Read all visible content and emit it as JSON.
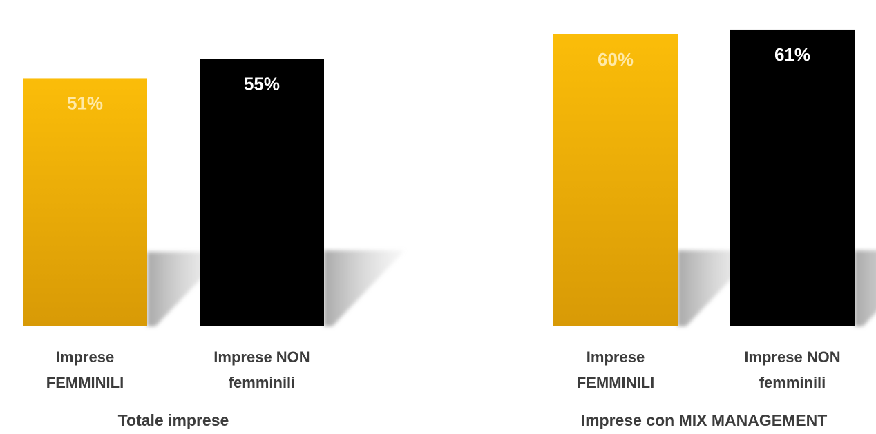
{
  "chart_data": {
    "type": "bar",
    "groups": [
      {
        "label": "Totale imprese",
        "bars": [
          {
            "category": [
              "Imprese",
              "FEMMINILI"
            ],
            "value": 51,
            "value_label": "51%",
            "series": "Imprese FEMMINILI"
          },
          {
            "category": [
              "Imprese NON",
              "femminili"
            ],
            "value": 55,
            "value_label": "55%",
            "series": "Imprese NON femminili"
          }
        ]
      },
      {
        "label": "Imprese con MIX MANAGEMENT",
        "bars": [
          {
            "category": [
              "Imprese",
              "FEMMINILI"
            ],
            "value": 60,
            "value_label": "60%",
            "series": "Imprese FEMMINILI"
          },
          {
            "category": [
              "Imprese NON",
              "femminili"
            ],
            "value": 61,
            "value_label": "61%",
            "series": "Imprese NON femminili"
          }
        ]
      }
    ],
    "unit": "%",
    "grid": false,
    "legend": "none",
    "colors": {
      "Imprese FEMMINILI": {
        "top": "#fbbd09",
        "bottom": "#d89a06",
        "label": "#ffe9a6"
      },
      "Imprese NON femminili": {
        "top": "#000000",
        "bottom": "#000000",
        "label": "#ffffff"
      },
      "shadow": "#b8b8b8",
      "text": "#3c3c3c"
    }
  }
}
